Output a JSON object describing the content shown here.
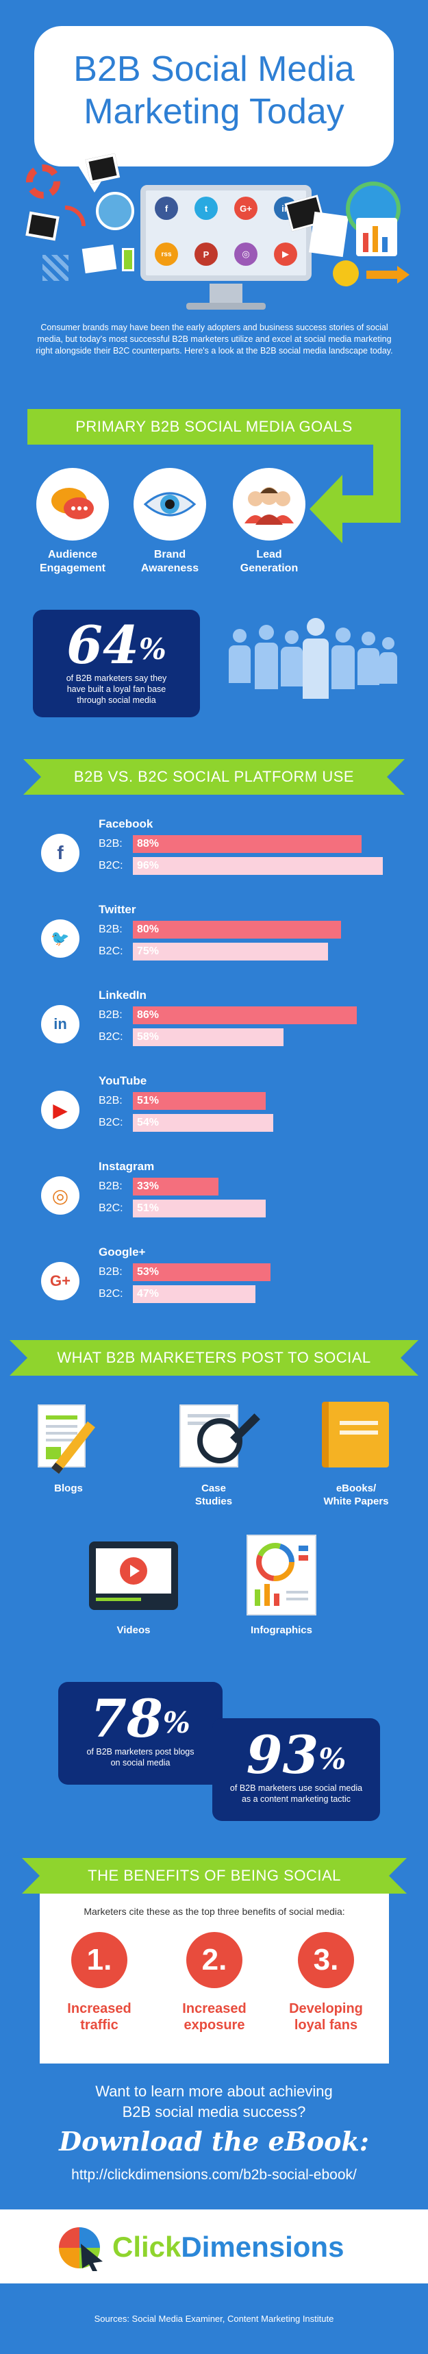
{
  "header": {
    "title_line1": "B2B Social Media",
    "title_line2": "Marketing Today",
    "social_icons": [
      {
        "icon": "facebook-icon",
        "glyph": "f",
        "color": "#3b5998"
      },
      {
        "icon": "twitter-icon",
        "glyph": "t",
        "color": "#29a9e1"
      },
      {
        "icon": "google-plus-icon",
        "glyph": "G+",
        "color": "#e84c3d"
      },
      {
        "icon": "linkedin-icon",
        "glyph": "in",
        "color": "#2a6fb5"
      },
      {
        "icon": "rss-icon",
        "glyph": "rss",
        "color": "#f39c12"
      },
      {
        "icon": "pinterest-icon",
        "glyph": "P",
        "color": "#c0392b"
      },
      {
        "icon": "instagram-icon",
        "glyph": "◎",
        "color": "#9b59b6"
      },
      {
        "icon": "youtube-icon",
        "glyph": "▶",
        "color": "#e74c3c"
      }
    ]
  },
  "intro": "Consumer brands may have been the early adopters and business success stories of social media, but today's most successful B2B marketers utilize and excel at social media marketing right alongside their B2C counterparts. Here's a look at the B2B social media landscape today.",
  "goals": {
    "banner": "PRIMARY B2B SOCIAL MEDIA GOALS",
    "items": [
      {
        "line1": "Audience",
        "line2": "Engagement",
        "icon": "chat-bubbles-icon"
      },
      {
        "line1": "Brand",
        "line2": "Awareness",
        "icon": "eye-icon"
      },
      {
        "line1": "Lead",
        "line2": "Generation",
        "icon": "people-group-icon"
      }
    ],
    "stat": {
      "value": "64",
      "unit": "%",
      "text_line1": "of B2B marketers say they",
      "text_line2": "have built a loyal fan base",
      "text_line3": "through social media"
    }
  },
  "platforms": {
    "banner": "B2B VS. B2C SOCIAL PLATFORM USE",
    "b2b_label": "B2B:",
    "b2c_label": "B2C:",
    "items": [
      {
        "name": "Facebook",
        "icon": "facebook-icon",
        "glyph": "f",
        "color": "#3b5998",
        "b2b": 88,
        "b2c": 96,
        "b2b_text": "88%",
        "b2c_text": "96%"
      },
      {
        "name": "Twitter",
        "icon": "twitter-icon",
        "glyph": "🐦",
        "color": "#29a9e1",
        "b2b": 80,
        "b2c": 75,
        "b2b_text": "80%",
        "b2c_text": "75%"
      },
      {
        "name": "LinkedIn",
        "icon": "linkedin-icon",
        "glyph": "in",
        "color": "#2a6fb5",
        "b2b": 86,
        "b2c": 58,
        "b2b_text": "86%",
        "b2c_text": "58%"
      },
      {
        "name": "YouTube",
        "icon": "youtube-icon",
        "glyph": "▶",
        "color": "#e62117",
        "b2b": 51,
        "b2c": 54,
        "b2b_text": "51%",
        "b2c_text": "54%"
      },
      {
        "name": "Instagram",
        "icon": "instagram-icon",
        "glyph": "◎",
        "color": "#e67e22",
        "b2b": 33,
        "b2c": 51,
        "b2b_text": "33%",
        "b2c_text": "51%"
      },
      {
        "name": "Google+",
        "icon": "google-plus-icon",
        "glyph": "G+",
        "color": "#dd4b39",
        "b2b": 53,
        "b2c": 47,
        "b2b_text": "53%",
        "b2c_text": "47%"
      }
    ]
  },
  "content": {
    "banner": "WHAT B2B MARKETERS POST TO SOCIAL",
    "items": [
      {
        "line1": "Blogs",
        "line2": "",
        "icon": "blog-document-icon"
      },
      {
        "line1": "Case",
        "line2": "Studies",
        "icon": "magnifier-document-icon"
      },
      {
        "line1": "eBooks/",
        "line2": "White Papers",
        "icon": "book-icon"
      },
      {
        "line1": "Videos",
        "line2": "",
        "icon": "video-player-icon"
      },
      {
        "line1": "Infographics",
        "line2": "",
        "icon": "infographic-icon"
      }
    ],
    "stat1": {
      "value": "78",
      "unit": "%",
      "text_line1": "of B2B marketers post blogs",
      "text_line2": "on social media"
    },
    "stat2": {
      "value": "93",
      "unit": "%",
      "text_line1": "of B2B marketers use social media",
      "text_line2": "as a content marketing tactic"
    }
  },
  "benefits": {
    "banner": "THE BENEFITS OF BEING SOCIAL",
    "intro": "Marketers cite these as the top three benefits of social media:",
    "items": [
      {
        "num": "1.",
        "line1": "Increased",
        "line2": "traffic"
      },
      {
        "num": "2.",
        "line1": "Increased",
        "line2": "exposure"
      },
      {
        "num": "3.",
        "line1": "Developing",
        "line2": "loyal fans"
      }
    ]
  },
  "cta": {
    "question_line1": "Want to learn more about achieving",
    "question_line2": "B2B social media success?",
    "download": "Download the eBook:",
    "url": "http://clickdimensions.com/b2b-social-ebook/"
  },
  "footer": {
    "logo_part1": "Click",
    "logo_part2": "Dimensions",
    "sources": "Sources: Social Media Examiner, Content Marketing Institute"
  },
  "colors": {
    "background": "#2e7fd4",
    "banner_green": "#8fd42d",
    "stat_navy": "#0d2d7a",
    "b2b_bar": "#f46f7d",
    "b2c_bar": "#fbd2dd",
    "benefit_red": "#e84c3d",
    "logo_blue": "#2b87d8"
  }
}
